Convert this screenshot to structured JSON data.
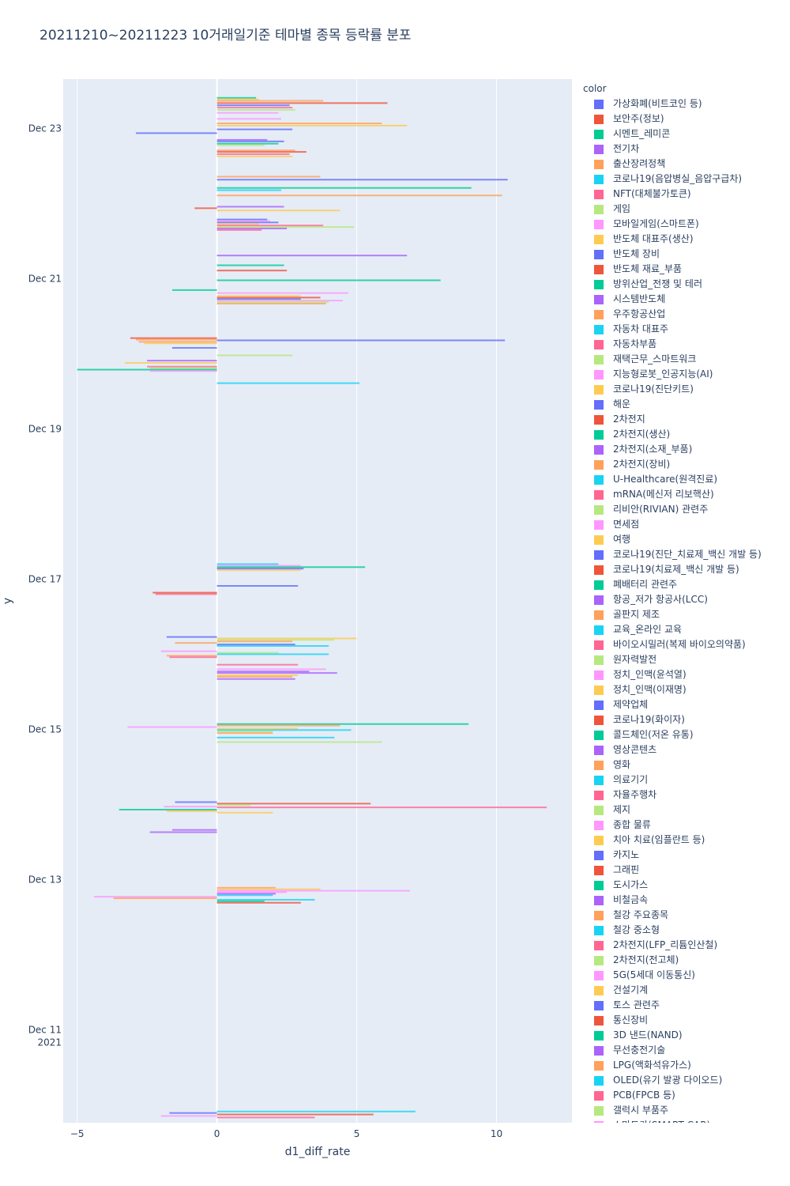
{
  "chart_data": {
    "type": "bar",
    "orientation": "horizontal",
    "barmode": "group",
    "title": "20211210~20211223 10거래일기준 테마별 종목 등락률 분포",
    "xlabel": "d1_diff_rate",
    "ylabel": "y",
    "xlim": [
      -5.5,
      12.7
    ],
    "x_ticks": [
      -5,
      0,
      5,
      10
    ],
    "x_tick_labels": [
      "−5",
      "0",
      "5",
      "10"
    ],
    "y_ticks": [
      {
        "day": 23,
        "label": "Dec 23"
      },
      {
        "day": 21,
        "label": "Dec 21"
      },
      {
        "day": 19,
        "label": "Dec 19"
      },
      {
        "day": 17,
        "label": "Dec 17"
      },
      {
        "day": 15,
        "label": "Dec 15"
      },
      {
        "day": 13,
        "label": "Dec 13"
      },
      {
        "day": 11,
        "label": "Dec 11",
        "label2": "2021"
      }
    ],
    "ylim_days": [
      9.75,
      23.65
    ],
    "legend_title": "color",
    "palette": [
      "#636efa",
      "#EF553B",
      "#00cc96",
      "#ab63fa",
      "#FFA15A",
      "#19d3f3",
      "#FF6692",
      "#B6E880",
      "#FF97FF",
      "#FECB52"
    ],
    "legend": [
      "가상화폐(비트코인 등)",
      "보안주(정보)",
      "시멘트_레미콘",
      "전기차",
      "출산장려정책",
      "코로나19(음압병실_음압구급차)",
      "NFT(대체불가토큰)",
      "게임",
      "모바일게임(스마트폰)",
      "반도체 대표주(생산)",
      "반도체 장비",
      "반도체 재료_부품",
      "방위산업_전쟁 및 테러",
      "시스템반도체",
      "우주항공산업",
      "자동차 대표주",
      "자동차부품",
      "재택근무_스마트워크",
      "지능형로봇_인공지능(AI)",
      "코로나19(진단키트)",
      "해운",
      "2차전지",
      "2차전지(생산)",
      "2차전지(소재_부품)",
      "2차전지(장비)",
      "U-Healthcare(원격진료)",
      "mRNA(메신저 리보핵산)",
      "리비안(RIVIAN) 관련주",
      "면세점",
      "여행",
      "코로나19(진단_치료제_백신 개발 등)",
      "코로나19(치료제_백신 개발 등)",
      "폐배터리 관련주",
      "항공_저가 항공사(LCC)",
      "골판지 제조",
      "교육_온라인 교육",
      "바이오시밀러(복제 바이오의약품)",
      "원자력발전",
      "정치_인맥(윤석열)",
      "정치_인맥(이재명)",
      "제약업체",
      "코로나19(화이자)",
      "콜드체인(저온 유통)",
      "영상콘텐츠",
      "영화",
      "의료기기",
      "자율주행차",
      "제지",
      "종합 물류",
      "치아 치료(임플란트 등)",
      "카지노",
      "그래핀",
      "도시가스",
      "비철금속",
      "철강 주요종목",
      "철강 중소형",
      "2차전지(LFP_리튬인산철)",
      "2차전지(전고체)",
      "5G(5세대 이동통신)",
      "건설기계",
      "토스 관련주",
      "통신장비",
      "3D 낸드(NAND)",
      "무선충전기술",
      "LPG(액화석유가스)",
      "OLED(유기 발광 다이오드)",
      "PCB(FPCB 등)",
      "갤럭시 부품주",
      "스마트카(SMART CAR)"
    ],
    "bars": [
      {
        "day": 23.4,
        "x": 1.4,
        "c": 2
      },
      {
        "day": 23.38,
        "x": 1.5,
        "c": 9
      },
      {
        "day": 23.36,
        "x": 3.8,
        "c": 4
      },
      {
        "day": 23.33,
        "x": 6.1,
        "c": 1
      },
      {
        "day": 23.3,
        "x": 2.6,
        "c": 0
      },
      {
        "day": 23.27,
        "x": 2.7,
        "c": 6
      },
      {
        "day": 23.24,
        "x": 2.8,
        "c": 7
      },
      {
        "day": 23.2,
        "x": 2.2,
        "c": 8
      },
      {
        "day": 23.12,
        "x": 2.3,
        "c": 8
      },
      {
        "day": 23.06,
        "x": 5.9,
        "c": 4
      },
      {
        "day": 23.03,
        "x": 6.8,
        "c": 9
      },
      {
        "day": 22.98,
        "x": 2.7,
        "c": 0
      },
      {
        "day": 22.93,
        "x": -2.9,
        "c": 0
      },
      {
        "day": 22.84,
        "x": 1.8,
        "c": 3
      },
      {
        "day": 22.82,
        "x": 2.4,
        "c": 0
      },
      {
        "day": 22.79,
        "x": 2.2,
        "c": 2
      },
      {
        "day": 22.77,
        "x": 1.7,
        "c": 7
      },
      {
        "day": 22.7,
        "x": 2.8,
        "c": 4
      },
      {
        "day": 22.68,
        "x": 3.2,
        "c": 1
      },
      {
        "day": 22.65,
        "x": 2.6,
        "c": 6
      },
      {
        "day": 22.62,
        "x": 2.7,
        "c": 9
      },
      {
        "day": 22.35,
        "x": 3.7,
        "c": 4
      },
      {
        "day": 22.31,
        "x": 10.4,
        "c": 0
      },
      {
        "day": 22.2,
        "x": 9.1,
        "c": 2
      },
      {
        "day": 22.17,
        "x": 2.3,
        "c": 5
      },
      {
        "day": 22.1,
        "x": 10.2,
        "c": 4
      },
      {
        "day": 21.95,
        "x": 2.4,
        "c": 3
      },
      {
        "day": 21.93,
        "x": -0.8,
        "c": 1
      },
      {
        "day": 21.9,
        "x": 4.4,
        "c": 9
      },
      {
        "day": 21.78,
        "x": 1.8,
        "c": 0
      },
      {
        "day": 21.76,
        "x": 1.9,
        "c": 8
      },
      {
        "day": 21.74,
        "x": 2.2,
        "c": 0
      },
      {
        "day": 21.72,
        "x": 1.5,
        "c": 9
      },
      {
        "day": 21.7,
        "x": 3.8,
        "c": 6
      },
      {
        "day": 21.68,
        "x": 4.9,
        "c": 7
      },
      {
        "day": 21.66,
        "x": 2.5,
        "c": 3
      },
      {
        "day": 21.64,
        "x": 1.6,
        "c": 6
      },
      {
        "day": 21.3,
        "x": 6.8,
        "c": 3
      },
      {
        "day": 21.17,
        "x": 2.4,
        "c": 2
      },
      {
        "day": 21.1,
        "x": 2.5,
        "c": 1
      },
      {
        "day": 20.97,
        "x": 8.0,
        "c": 2
      },
      {
        "day": 20.84,
        "x": -1.6,
        "c": 2
      },
      {
        "day": 20.8,
        "x": 4.7,
        "c": 8
      },
      {
        "day": 20.76,
        "x": 3.0,
        "c": 9
      },
      {
        "day": 20.74,
        "x": 3.7,
        "c": 1
      },
      {
        "day": 20.72,
        "x": 3.0,
        "c": 0
      },
      {
        "day": 20.7,
        "x": 4.5,
        "c": 8
      },
      {
        "day": 20.68,
        "x": 4.0,
        "c": 7
      },
      {
        "day": 20.66,
        "x": 3.9,
        "c": 4
      },
      {
        "day": 20.2,
        "x": -3.1,
        "c": 1
      },
      {
        "day": 20.18,
        "x": -2.9,
        "c": 4
      },
      {
        "day": 20.17,
        "x": 10.3,
        "c": 0
      },
      {
        "day": 20.15,
        "x": -2.8,
        "c": 4
      },
      {
        "day": 20.13,
        "x": -2.6,
        "c": 9
      },
      {
        "day": 20.07,
        "x": -1.6,
        "c": 0
      },
      {
        "day": 19.97,
        "x": 2.7,
        "c": 7
      },
      {
        "day": 19.9,
        "x": -2.5,
        "c": 3
      },
      {
        "day": 19.87,
        "x": -3.3,
        "c": 9
      },
      {
        "day": 19.82,
        "x": -2.5,
        "c": 6
      },
      {
        "day": 19.8,
        "x": -2.4,
        "c": 7
      },
      {
        "day": 19.78,
        "x": -5.0,
        "c": 2
      },
      {
        "day": 19.76,
        "x": -2.4,
        "c": 8
      },
      {
        "day": 19.6,
        "x": 5.1,
        "c": 5
      },
      {
        "day": 17.19,
        "x": 2.2,
        "c": 5
      },
      {
        "day": 17.17,
        "x": 3.0,
        "c": 8
      },
      {
        "day": 17.15,
        "x": 5.3,
        "c": 2
      },
      {
        "day": 17.13,
        "x": 3.1,
        "c": 0
      },
      {
        "day": 17.11,
        "x": 3.0,
        "c": 9
      },
      {
        "day": 16.9,
        "x": 2.9,
        "c": 0
      },
      {
        "day": 16.81,
        "x": -2.3,
        "c": 1
      },
      {
        "day": 16.79,
        "x": -2.2,
        "c": 6
      },
      {
        "day": 16.22,
        "x": -1.8,
        "c": 0
      },
      {
        "day": 16.2,
        "x": 5.0,
        "c": 9
      },
      {
        "day": 16.18,
        "x": 4.2,
        "c": 7
      },
      {
        "day": 16.16,
        "x": 2.7,
        "c": 4
      },
      {
        "day": 16.14,
        "x": -1.5,
        "c": 4
      },
      {
        "day": 16.12,
        "x": 2.8,
        "c": 0
      },
      {
        "day": 16.1,
        "x": 4.0,
        "c": 5
      },
      {
        "day": 16.03,
        "x": -2.0,
        "c": 8
      },
      {
        "day": 16.01,
        "x": 2.2,
        "c": 7
      },
      {
        "day": 15.99,
        "x": 4.0,
        "c": 5
      },
      {
        "day": 15.97,
        "x": -1.8,
        "c": 4
      },
      {
        "day": 15.95,
        "x": -1.7,
        "c": 6
      },
      {
        "day": 15.85,
        "x": 2.9,
        "c": 6
      },
      {
        "day": 15.79,
        "x": 3.9,
        "c": 8
      },
      {
        "day": 15.76,
        "x": 3.3,
        "c": 3
      },
      {
        "day": 15.74,
        "x": 4.3,
        "c": 3
      },
      {
        "day": 15.71,
        "x": 2.9,
        "c": 9
      },
      {
        "day": 15.69,
        "x": 2.7,
        "c": 4
      },
      {
        "day": 15.66,
        "x": 2.8,
        "c": 3
      },
      {
        "day": 15.06,
        "x": 9.0,
        "c": 2
      },
      {
        "day": 15.04,
        "x": 4.4,
        "c": 4
      },
      {
        "day": 15.02,
        "x": -3.2,
        "c": 8
      },
      {
        "day": 15.0,
        "x": 2.9,
        "c": 9
      },
      {
        "day": 14.98,
        "x": 4.8,
        "c": 5
      },
      {
        "day": 14.96,
        "x": 2.0,
        "c": 7
      },
      {
        "day": 14.94,
        "x": 2.0,
        "c": 4
      },
      {
        "day": 14.88,
        "x": 4.2,
        "c": 5
      },
      {
        "day": 14.82,
        "x": 5.9,
        "c": 7
      },
      {
        "day": 14.02,
        "x": -1.5,
        "c": 0
      },
      {
        "day": 14.0,
        "x": 5.5,
        "c": 1
      },
      {
        "day": 13.98,
        "x": 1.2,
        "c": 7
      },
      {
        "day": 13.96,
        "x": -1.9,
        "c": 8
      },
      {
        "day": 13.95,
        "x": 11.8,
        "c": 6
      },
      {
        "day": 13.92,
        "x": -3.5,
        "c": 2
      },
      {
        "day": 13.9,
        "x": -1.8,
        "c": 9
      },
      {
        "day": 13.88,
        "x": 2.0,
        "c": 9
      },
      {
        "day": 13.65,
        "x": -1.6,
        "c": 3
      },
      {
        "day": 13.62,
        "x": -2.4,
        "c": 3
      },
      {
        "day": 12.88,
        "x": 2.1,
        "c": 4
      },
      {
        "day": 12.86,
        "x": 3.7,
        "c": 9
      },
      {
        "day": 12.84,
        "x": 6.9,
        "c": 8
      },
      {
        "day": 12.82,
        "x": 2.5,
        "c": 8
      },
      {
        "day": 12.8,
        "x": 2.1,
        "c": 3
      },
      {
        "day": 12.78,
        "x": 2.0,
        "c": 5
      },
      {
        "day": 12.76,
        "x": -4.4,
        "c": 8
      },
      {
        "day": 12.74,
        "x": -3.7,
        "c": 4
      },
      {
        "day": 12.72,
        "x": 3.5,
        "c": 5
      },
      {
        "day": 12.7,
        "x": 1.7,
        "c": 2
      },
      {
        "day": 12.68,
        "x": 3.0,
        "c": 1
      },
      {
        "day": 9.9,
        "x": 7.1,
        "c": 5
      },
      {
        "day": 9.88,
        "x": -1.7,
        "c": 0
      },
      {
        "day": 9.86,
        "x": 5.6,
        "c": 1
      },
      {
        "day": 9.84,
        "x": -2.0,
        "c": 8
      },
      {
        "day": 9.82,
        "x": 3.5,
        "c": 6
      }
    ]
  }
}
